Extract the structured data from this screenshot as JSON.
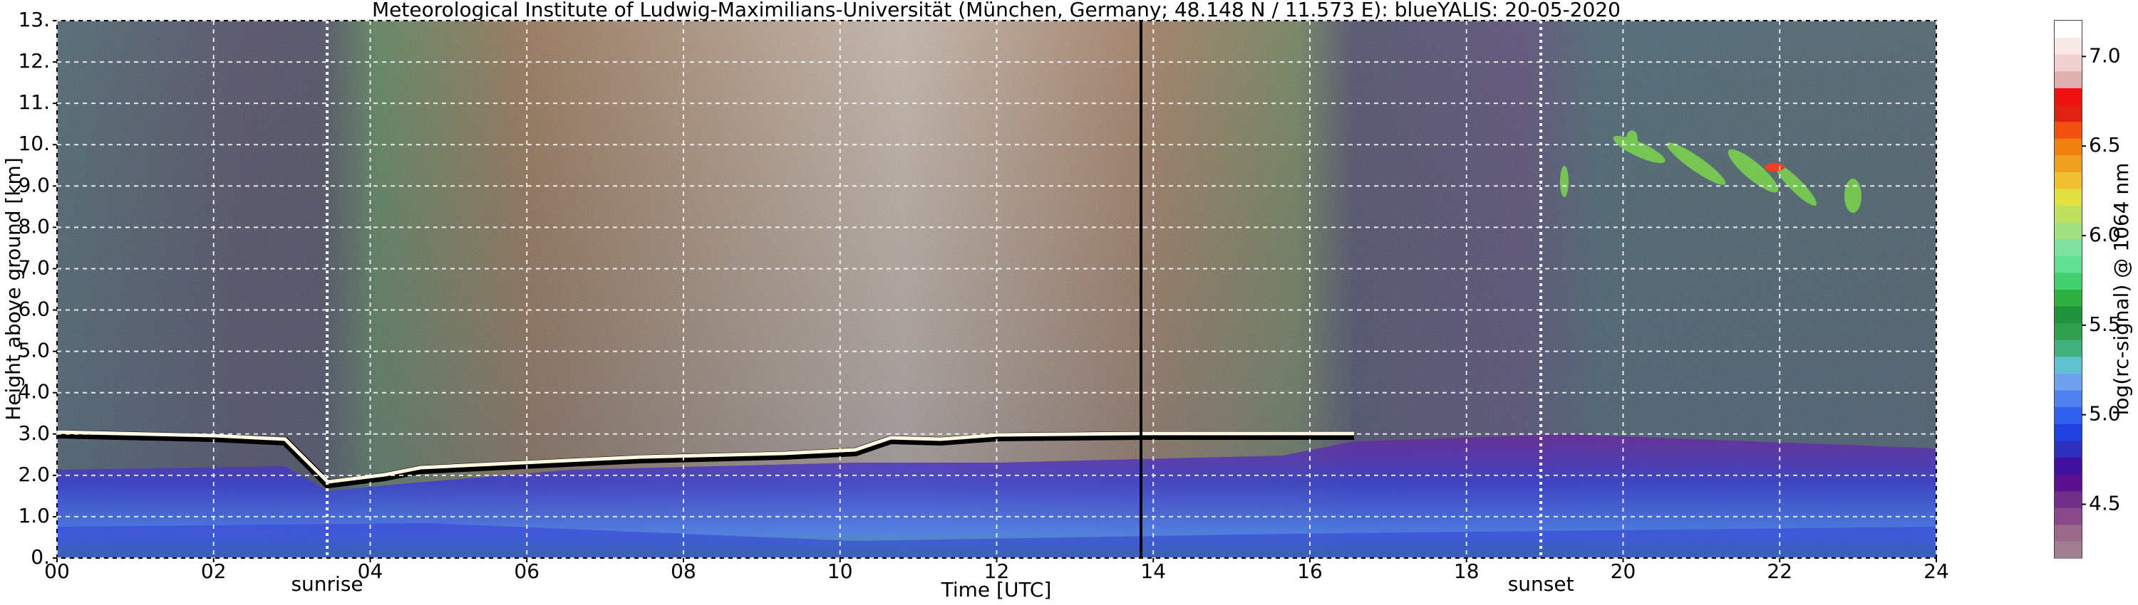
{
  "chart_data": {
    "type": "heatmap",
    "title": "Meteorological Institute of Ludwig-Maximilians-Universität (München, Germany; 48.148 N / 11.573 E):    blueYALIS: 20-05-2020",
    "xlabel": "Time [UTC]",
    "ylabel": "Height above ground [km]",
    "xlim": [
      0,
      24
    ],
    "xticks": [
      {
        "value": 0,
        "label": "00"
      },
      {
        "value": 2,
        "label": "02"
      },
      {
        "value": 4,
        "label": "04"
      },
      {
        "value": 6,
        "label": "06"
      },
      {
        "value": 8,
        "label": "08"
      },
      10,
      12,
      14,
      16,
      18,
      20,
      22,
      24
    ],
    "ylim": [
      0,
      13
    ],
    "yticks": [
      {
        "value": 0,
        "label": "0."
      },
      {
        "value": 1,
        "label": "1.0"
      },
      {
        "value": 2,
        "label": "2.0"
      },
      {
        "value": 3,
        "label": "3.0"
      },
      {
        "value": 4,
        "label": "4.0"
      },
      {
        "value": 5,
        "label": "5.0"
      },
      {
        "value": 6,
        "label": "6.0"
      },
      {
        "value": 7,
        "label": "7.0"
      },
      {
        "value": 8,
        "label": "8.0"
      },
      {
        "value": 9,
        "label": "9.0"
      },
      {
        "value": 10,
        "label": "10."
      },
      {
        "value": 11,
        "label": "11."
      },
      {
        "value": 12,
        "label": "12."
      },
      {
        "value": 13,
        "label": "13."
      }
    ],
    "grid": true,
    "annotations": [
      {
        "text": "sunrise",
        "x": 3.45
      },
      {
        "text": "sunset",
        "x": 18.95
      }
    ],
    "colorbar": {
      "label": "log(rc-signal) @ 1064 nm",
      "clim": [
        4.2,
        7.2
      ],
      "ticks": [
        4.5,
        {
          "value": 5,
          "label": "5.0"
        },
        5.5,
        {
          "value": 6,
          "label": "6.0"
        },
        6.5,
        {
          "value": 7,
          "label": "7.0"
        }
      ],
      "colors": [
        "#a08090",
        "#9a6a8a",
        "#8a4a8a",
        "#70308a",
        "#5a1090",
        "#4010a0",
        "#3030c0",
        "#2040e0",
        "#3060f0",
        "#5080f0",
        "#70a0f0",
        "#60c0d0",
        "#40b080",
        "#30a050",
        "#20903a",
        "#30b040",
        "#40d070",
        "#60e090",
        "#80e0a0",
        "#a0e080",
        "#c0e060",
        "#e0e040",
        "#f0c030",
        "#f0a020",
        "#f08010",
        "#f05010",
        "#e02010",
        "#f01010",
        "#e0b0b0",
        "#f0d0d0",
        "#f8e8e8",
        "#ffffff"
      ]
    }
  }
}
